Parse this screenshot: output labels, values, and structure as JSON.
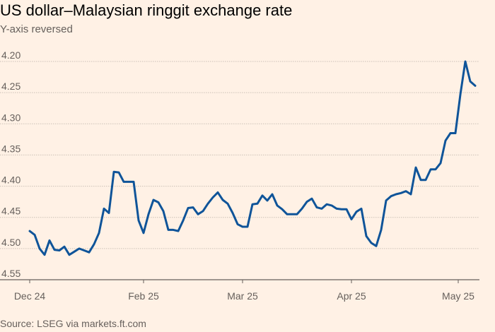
{
  "chart_data": {
    "type": "line",
    "title": "US dollar–Malaysian ringgit exchange rate",
    "subtitle": "Y-axis reversed",
    "source": "Source: LSEG via markets.ft.com",
    "ylim": [
      4.55,
      4.2
    ],
    "reversed_y": true,
    "y_ticks": [
      "4.20",
      "4.25",
      "4.30",
      "4.35",
      "4.40",
      "4.45",
      "4.50",
      "4.55"
    ],
    "x_ticks": [
      "Dec 24",
      "Feb 25",
      "Mar 25",
      "Apr 25",
      "May 25"
    ],
    "grid": true,
    "line_color": "#0f5499",
    "series": [
      {
        "values": [
          4.472,
          4.478,
          4.5,
          4.51,
          4.487,
          4.502,
          4.503,
          4.497,
          4.51,
          4.505,
          4.5,
          4.503,
          4.506,
          4.493,
          4.475,
          4.436,
          4.443,
          4.377,
          4.378,
          4.393,
          4.393,
          4.393,
          4.455,
          4.475,
          4.445,
          4.422,
          4.426,
          4.44,
          4.47,
          4.47,
          4.472,
          4.455,
          4.435,
          4.434,
          4.445,
          4.44,
          4.428,
          4.418,
          4.41,
          4.422,
          4.428,
          4.443,
          4.461,
          4.465,
          4.465,
          4.429,
          4.428,
          4.415,
          4.423,
          4.413,
          4.431,
          4.437,
          4.445,
          4.445,
          4.445,
          4.436,
          4.425,
          4.42,
          4.434,
          4.436,
          4.429,
          4.431,
          4.436,
          4.437,
          4.437,
          4.453,
          4.441,
          4.436,
          4.48,
          4.491,
          4.496,
          4.47,
          4.423,
          4.416,
          4.413,
          4.411,
          4.408,
          4.413,
          4.37,
          4.39,
          4.39,
          4.373,
          4.373,
          4.363,
          4.327,
          4.315,
          4.315,
          4.253,
          4.2,
          4.232,
          4.239
        ]
      }
    ]
  }
}
